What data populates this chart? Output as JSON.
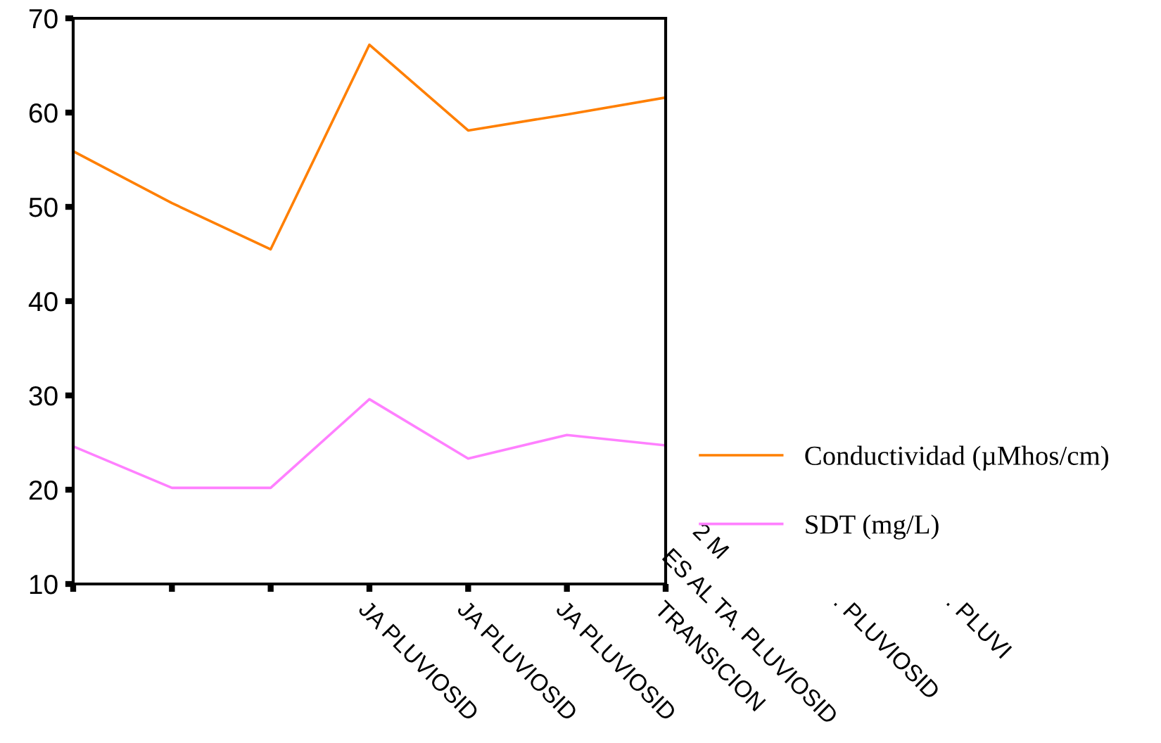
{
  "chart_data": {
    "type": "line",
    "categories": [
      null,
      null,
      null,
      "JA PLUVIOSID",
      "JA PLUVIOSID",
      "JA PLUVIOSID",
      "TRANSICION"
    ],
    "series": [
      {
        "name": "Conductividad (µMhos/cm)",
        "color": "#ff7f00",
        "values": [
          55.9,
          50.4,
          45.5,
          67.2,
          58.1,
          59.8,
          61.6
        ]
      },
      {
        "name": "SDT (mg/L)",
        "color": "#ff80ff",
        "values": [
          24.6,
          20.2,
          20.2,
          29.6,
          23.3,
          25.8,
          24.7
        ]
      }
    ],
    "annotations": [
      "2 M",
      "ES AL TA. PLUVIOSID",
      ". PLUVIOSID",
      ". PLUVI"
    ],
    "ylim": [
      10,
      70
    ],
    "yticks": [
      10,
      20,
      30,
      40,
      50,
      60,
      70
    ],
    "grid": false,
    "legend": "right",
    "marker": "none",
    "line_style": "solid"
  }
}
